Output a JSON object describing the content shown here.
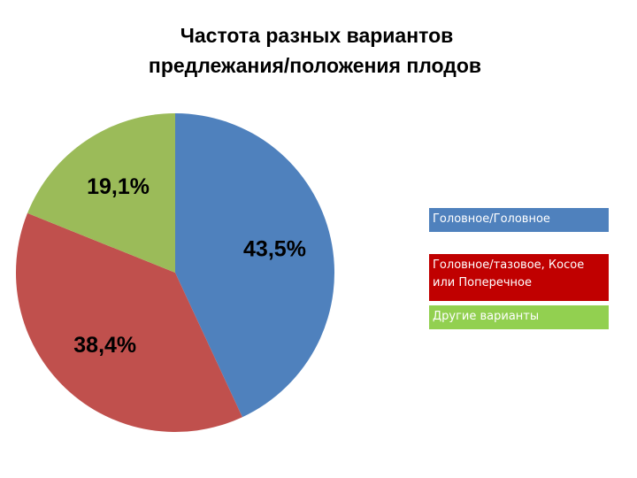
{
  "chart_data": {
    "type": "pie",
    "title": [
      "Частота разных вариантов",
      "предлежания/положения плодов"
    ],
    "categories": [
      "Головное/Головное",
      "Головное/тазовое, Косое или Поперечное",
      "Другие варианты"
    ],
    "values": [
      43.5,
      38.4,
      19.1
    ],
    "value_labels": [
      "43,5%",
      "38,4%",
      "19,1%"
    ],
    "colors": [
      "#4f81bd",
      "#c0504d",
      "#9bbb59"
    ],
    "legend_colors": [
      "#4f81bd",
      "#c00000",
      "#92d050"
    ]
  }
}
